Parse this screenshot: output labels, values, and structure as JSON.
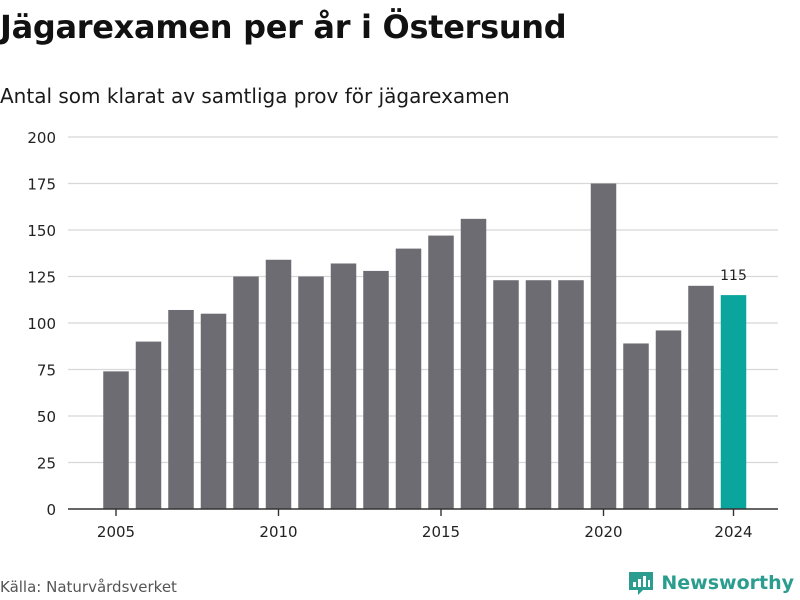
{
  "header": {
    "title": "Jägarexamen per år i Östersund",
    "subtitle": "Antal som klarat av samtliga prov för jägarexamen"
  },
  "footer": {
    "source": "Källa: Naturvårdsverket",
    "brand": "Newsworthy"
  },
  "colors": {
    "bar": "#6d6c72",
    "highlight": "#0aa59c",
    "grid": "#d8d8d8",
    "axis": "#333333",
    "brand": "#2a9d8f"
  },
  "chart_data": {
    "type": "bar",
    "x": [
      2005,
      2006,
      2007,
      2008,
      2009,
      2010,
      2011,
      2012,
      2013,
      2014,
      2015,
      2016,
      2017,
      2018,
      2019,
      2020,
      2021,
      2022,
      2023,
      2024
    ],
    "values": [
      74,
      90,
      107,
      105,
      125,
      134,
      125,
      132,
      128,
      140,
      147,
      156,
      123,
      123,
      123,
      175,
      89,
      96,
      120,
      115
    ],
    "highlight": 2024,
    "data_labels": [
      {
        "x": 2024,
        "text": "115"
      }
    ],
    "x_ticks": [
      "2005",
      "2010",
      "2015",
      "2020",
      "2024"
    ],
    "y_ticks": [
      "0",
      "25",
      "50",
      "75",
      "100",
      "125",
      "150",
      "175",
      "200"
    ],
    "ylim": [
      0,
      200
    ],
    "grid": true
  }
}
